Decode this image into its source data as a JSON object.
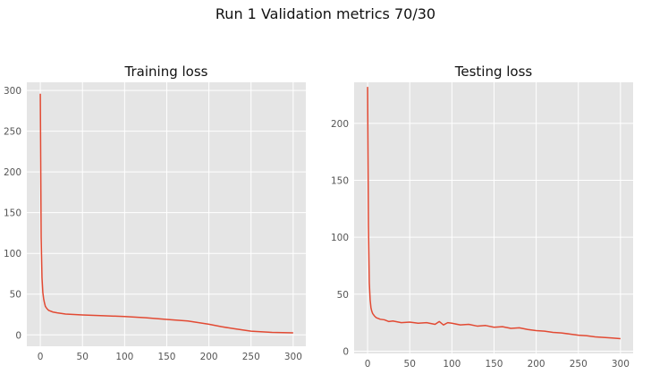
{
  "suptitle": "Run 1 Validation metrics 70/30",
  "chart_data": [
    {
      "type": "line",
      "title": "Training loss",
      "xlabel": "",
      "ylabel": "",
      "xlim": [
        -16,
        315
      ],
      "ylim": [
        -14,
        310
      ],
      "xticks": [
        0,
        50,
        100,
        150,
        200,
        250,
        300
      ],
      "yticks": [
        0,
        50,
        100,
        150,
        200,
        250,
        300
      ],
      "grid": true,
      "series": [
        {
          "color": "#e24a33",
          "x": [
            0,
            1,
            2,
            3,
            4,
            5,
            6,
            8,
            10,
            15,
            20,
            30,
            40,
            50,
            75,
            100,
            125,
            150,
            175,
            200,
            215,
            230,
            250,
            275,
            300
          ],
          "y": [
            296,
            120,
            70,
            52,
            44,
            39,
            35,
            32,
            30,
            28,
            27,
            25.5,
            25,
            24.5,
            23.5,
            22.5,
            21,
            19,
            17,
            13,
            10,
            7.5,
            4.5,
            3,
            2.5
          ]
        }
      ]
    },
    {
      "type": "line",
      "title": "Testing loss",
      "xlabel": "",
      "ylabel": "",
      "xlim": [
        -16,
        315
      ],
      "ylim": [
        -2,
        236
      ],
      "xticks": [
        0,
        50,
        100,
        150,
        200,
        250,
        300
      ],
      "yticks": [
        0,
        50,
        100,
        150,
        200
      ],
      "grid": true,
      "series": [
        {
          "color": "#e24a33",
          "x": [
            0,
            1,
            2,
            3,
            4,
            5,
            6,
            8,
            10,
            15,
            20,
            25,
            30,
            40,
            50,
            60,
            70,
            80,
            85,
            90,
            95,
            100,
            110,
            120,
            130,
            140,
            150,
            160,
            170,
            180,
            190,
            200,
            210,
            220,
            230,
            240,
            250,
            260,
            270,
            280,
            290,
            300
          ],
          "y": [
            232,
            110,
            60,
            45,
            38,
            35,
            33,
            31,
            29.5,
            28,
            27.5,
            26,
            26.5,
            25,
            25.5,
            24.5,
            25,
            23.5,
            26,
            23,
            25,
            24.5,
            23,
            23.5,
            22,
            22.5,
            21,
            21.5,
            20,
            20.5,
            19,
            18,
            17.5,
            16.5,
            16,
            15,
            14,
            13.5,
            12.5,
            12,
            11.5,
            11
          ]
        }
      ]
    }
  ]
}
